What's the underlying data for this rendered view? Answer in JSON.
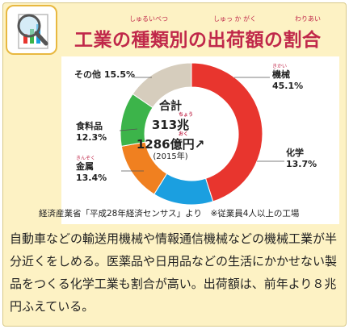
{
  "title": "工業の種類別の出荷額の割合",
  "title_ruby": [
    {
      "text": "しゅるいべつ",
      "over": "種類別"
    },
    {
      "text": "しゅっ か がく",
      "over": "出荷額"
    },
    {
      "text": "わりあい",
      "over": "割合"
    }
  ],
  "icon": "magnifier-chart-icon",
  "center": {
    "label": "合計",
    "amount1": "313兆",
    "amount1_ruby": "ちょう",
    "amount2": "1286億円",
    "amount2_ruby": "おく",
    "year": "(2015年)"
  },
  "source": "経済産業省「平成28年経済センサス」より　※従業員4人以上の工場",
  "body": "自動車などの輸送用機械や情報通信機械などの機械工業が半分近くをしめる。医薬品や日用品などの生活にかかせない製品をつくる化学工業も割合が高い。出荷額は、前年より８兆円ふえている。",
  "colors": {
    "machinery": "#e8352e",
    "chemical": "#1b9fe0",
    "metal": "#f08020",
    "food": "#3cb44a",
    "other": "#d6cdbd",
    "title": "#c0284a",
    "background": "#fdf2c4"
  },
  "chart_data": {
    "type": "pie",
    "style": "donut",
    "categories": [
      "機械",
      "化学",
      "金属",
      "食料品",
      "その他"
    ],
    "category_ruby": [
      "きかい",
      "",
      "きんぞく",
      "",
      ""
    ],
    "values": [
      45.1,
      13.7,
      13.4,
      12.3,
      15.5
    ],
    "value_labels": [
      "45.1%",
      "13.7%",
      "13.4%",
      "12.3%",
      "15.5%"
    ],
    "colors": [
      "#e8352e",
      "#1b9fe0",
      "#f08020",
      "#3cb44a",
      "#d6cdbd"
    ],
    "title": "工業の種類別の出荷額の割合",
    "legend": "labels-outside"
  }
}
